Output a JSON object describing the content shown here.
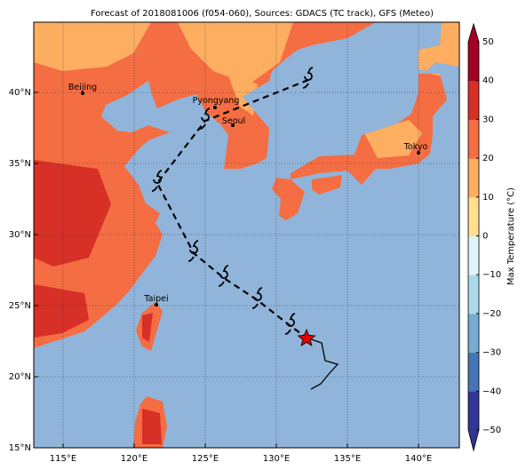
{
  "title": "Forecast of 2018081006 (f054-060), Sources: GDACS (TC track), GFS (Meteo)",
  "map": {
    "lonlim": [
      112.9375,
      142.875
    ],
    "latlim": [
      15,
      44.9375
    ],
    "grid": true,
    "lonticks": [
      {
        "value": 115,
        "label": "115°E"
      },
      {
        "value": 120,
        "label": "120°E"
      },
      {
        "value": 125,
        "label": "125°E"
      },
      {
        "value": 130,
        "label": "130°E"
      },
      {
        "value": 135,
        "label": "135°E"
      },
      {
        "value": 140,
        "label": "140°E"
      }
    ],
    "latticks": [
      {
        "value": 15,
        "label": "15°N"
      },
      {
        "value": 20,
        "label": "20°N"
      },
      {
        "value": 25,
        "label": "25°N"
      },
      {
        "value": 30,
        "label": "30°N"
      },
      {
        "value": 35,
        "label": "35°N"
      },
      {
        "value": 40,
        "label": "40°N"
      }
    ],
    "cities": [
      "Beijing",
      "Pyongyang",
      "Seoul",
      "Tokyo",
      "Taipei"
    ]
  },
  "colorbar": {
    "label": "Max Temperature (°C)",
    "lim": [
      -50,
      50
    ],
    "ticks": [
      {
        "value": -50,
        "label": "−50"
      },
      {
        "value": -40,
        "label": "−40"
      },
      {
        "value": -30,
        "label": "−30"
      },
      {
        "value": -20,
        "label": "−20"
      },
      {
        "value": -10,
        "label": "−10"
      },
      0,
      10,
      20,
      30,
      40,
      50
    ],
    "colors": [
      "#313695",
      "#4575b4",
      "#74add1",
      "#abd9e9",
      "#e0f3f8",
      "#fee090",
      "#fdae61",
      "#f46d43",
      "#d73027",
      "#a50026"
    ]
  }
}
